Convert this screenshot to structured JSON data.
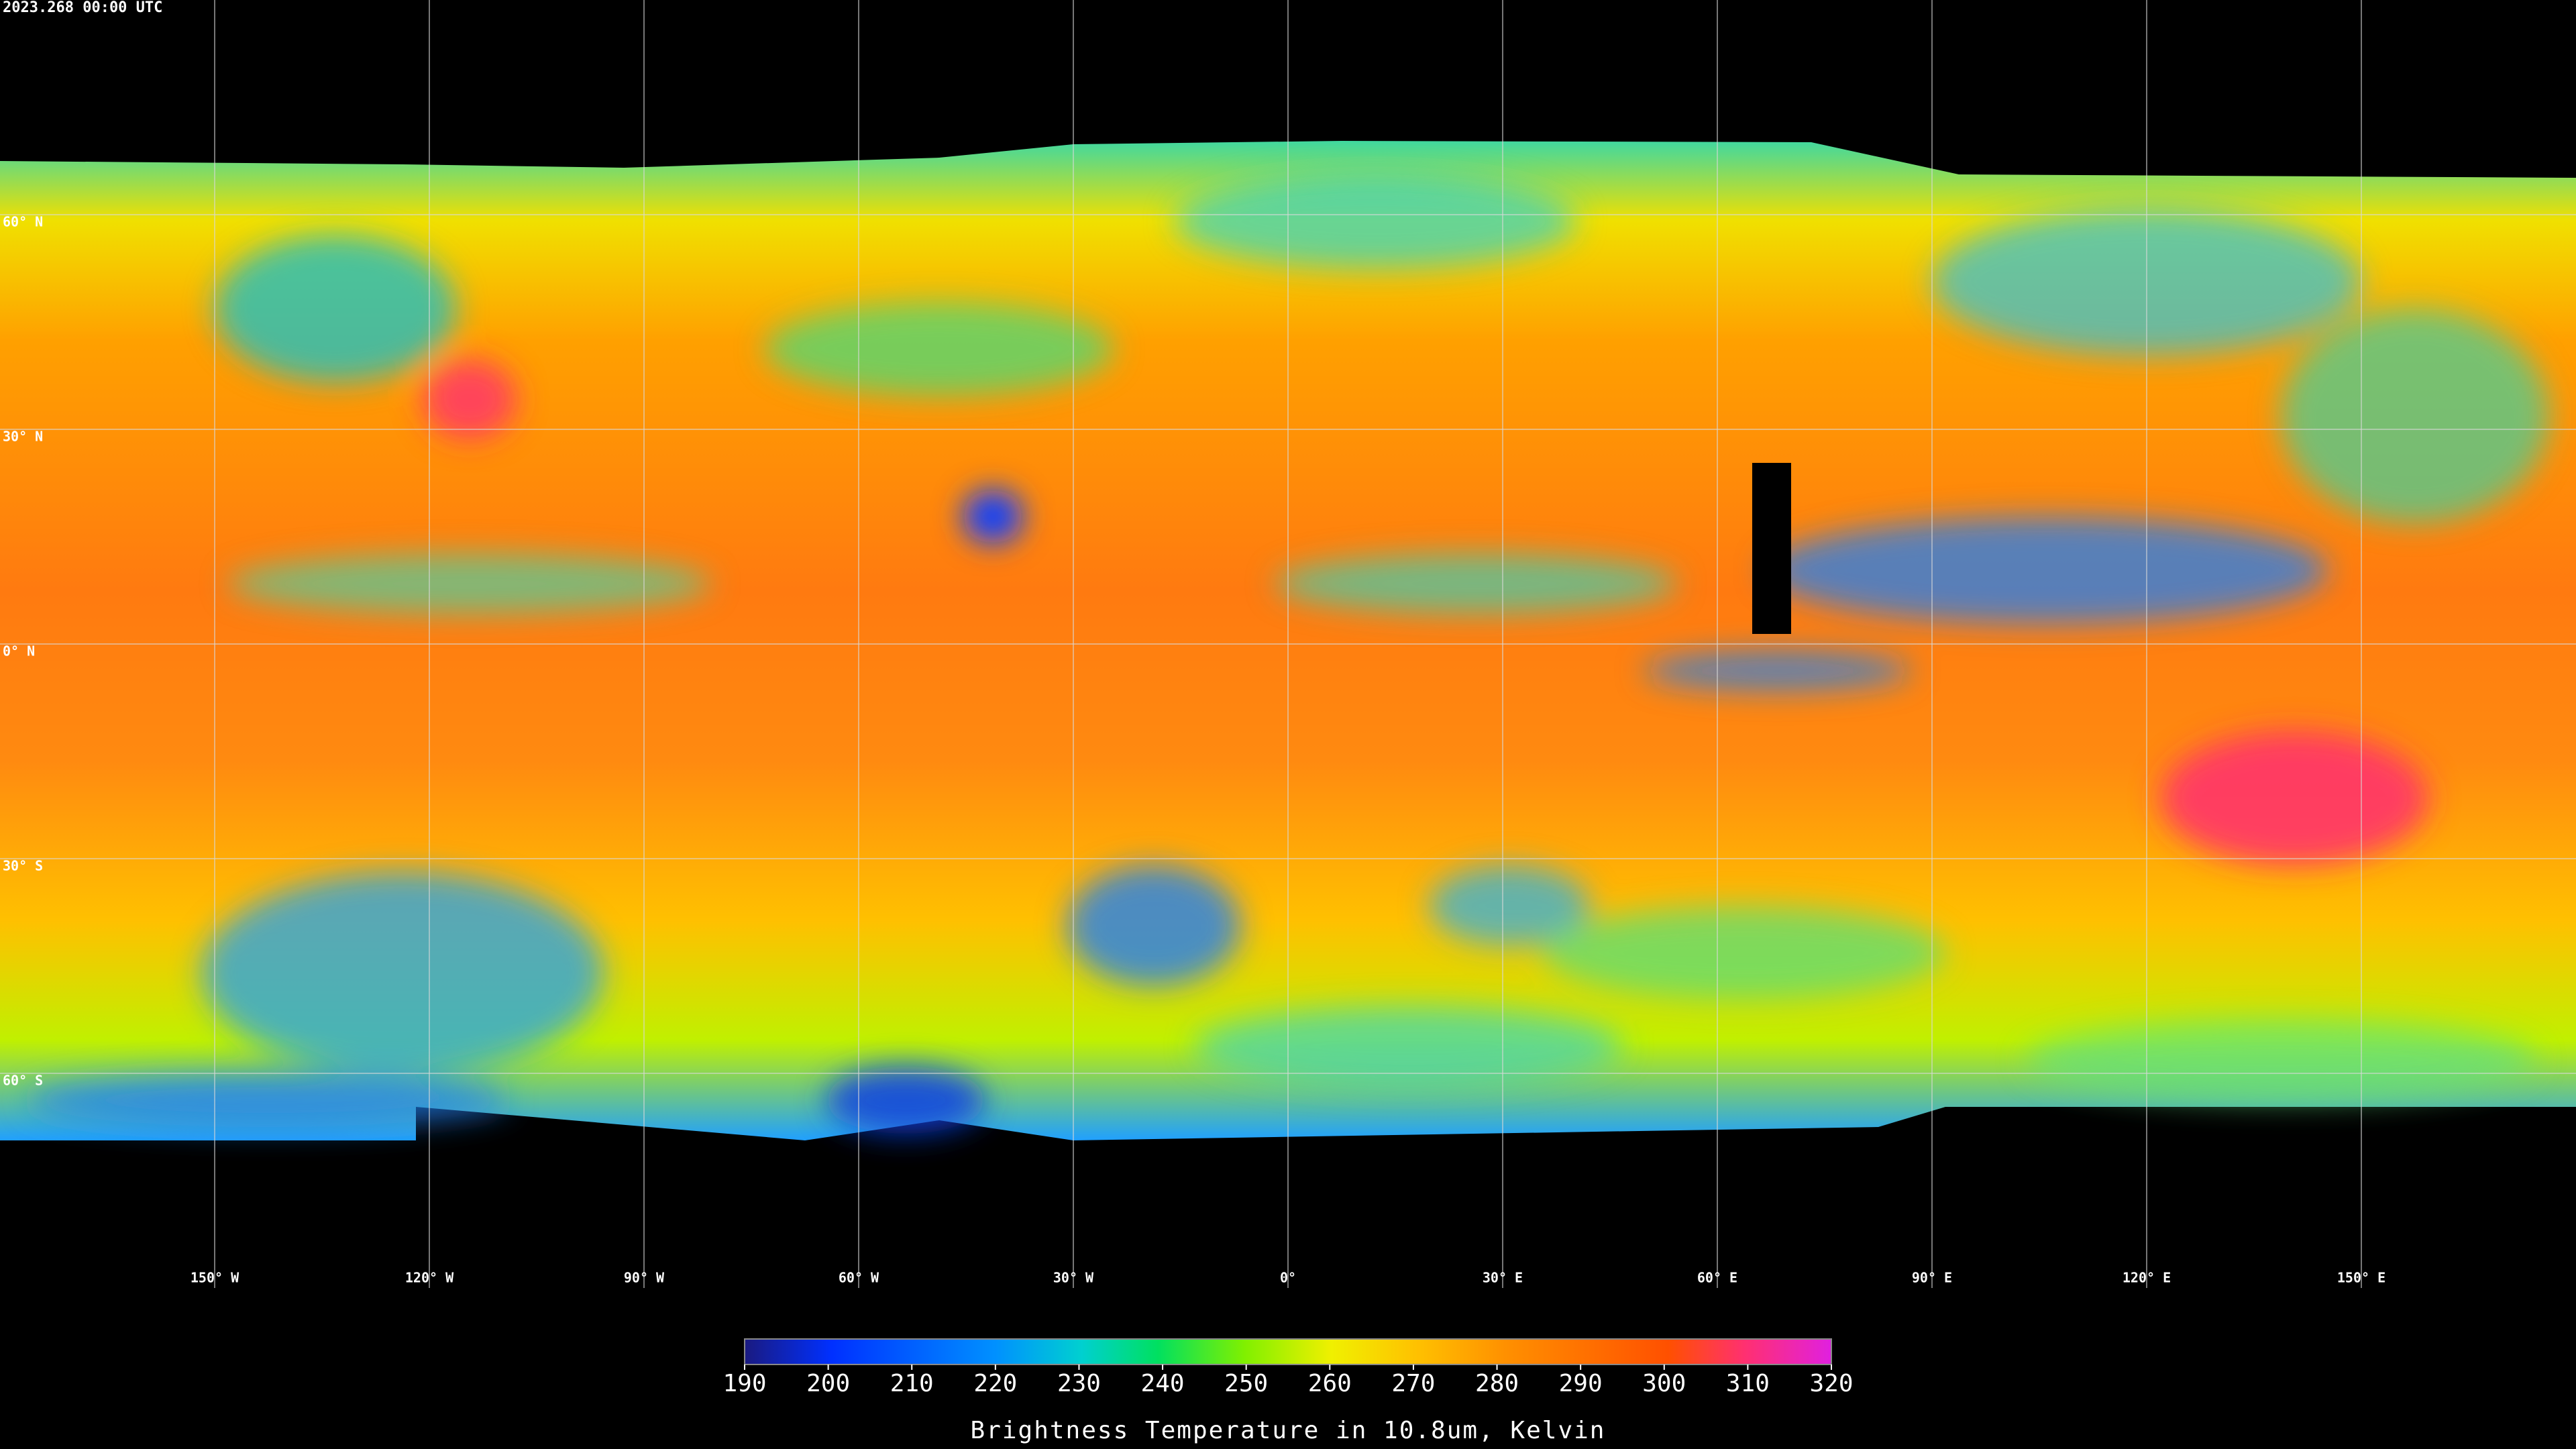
{
  "timestamp": "2023.268 00:00 UTC",
  "map": {
    "lonlim": [
      -180,
      180
    ],
    "latlim": [
      -90,
      90
    ],
    "lon_ticks": [
      {
        "value": -150,
        "label": "150° W"
      },
      {
        "value": -120,
        "label": "120° W"
      },
      {
        "value": -90,
        "label": "90° W"
      },
      {
        "value": -60,
        "label": "60° W"
      },
      {
        "value": -30,
        "label": "30° W"
      },
      {
        "value": 0,
        "label": "0°"
      },
      {
        "value": 30,
        "label": "30° E"
      },
      {
        "value": 60,
        "label": "60° E"
      },
      {
        "value": 90,
        "label": "90° E"
      },
      {
        "value": 120,
        "label": "120° E"
      },
      {
        "value": 150,
        "label": "150° E"
      }
    ],
    "lat_ticks": [
      {
        "value": 60,
        "label": "60° N"
      },
      {
        "value": 30,
        "label": "30° N"
      },
      {
        "value": 0,
        "label": "0° N"
      },
      {
        "value": -30,
        "label": "30° S"
      },
      {
        "value": -60,
        "label": "60° S"
      }
    ]
  },
  "colorbar": {
    "label": "Brightness Temperature in 10.8um, Kelvin",
    "lim": [
      190,
      320
    ],
    "ticks": [
      190,
      200,
      210,
      220,
      230,
      240,
      250,
      260,
      270,
      280,
      290,
      300,
      310,
      320
    ]
  }
}
